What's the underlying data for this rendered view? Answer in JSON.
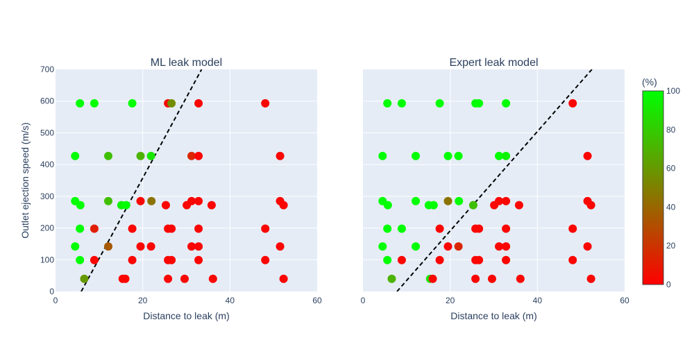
{
  "chart_data": [
    {
      "type": "scatter",
      "title": "ML leak model",
      "xlabel": "Distance to leak (m)",
      "ylabel": "Outlet ejection speed (m/s)",
      "xlim": [
        0,
        60
      ],
      "ylim": [
        0,
        700
      ],
      "xticks": [
        "0",
        "20",
        "40",
        "60"
      ],
      "yticks": [
        "0",
        "100",
        "200",
        "300",
        "400",
        "500",
        "600",
        "700"
      ],
      "grid": true,
      "boundary_line": {
        "x": [
          5.9,
          33.5
        ],
        "y": [
          0,
          700
        ],
        "style": "dashed"
      },
      "points": [
        {
          "x": 5.6,
          "y": 593,
          "value": 100
        },
        {
          "x": 8.9,
          "y": 593,
          "value": 100
        },
        {
          "x": 17.6,
          "y": 593,
          "value": 100
        },
        {
          "x": 25.8,
          "y": 593,
          "value": 3
        },
        {
          "x": 26.6,
          "y": 593,
          "value": 55
        },
        {
          "x": 32.8,
          "y": 593,
          "value": 2
        },
        {
          "x": 48.1,
          "y": 593,
          "value": 2
        },
        {
          "x": 4.5,
          "y": 427,
          "value": 100
        },
        {
          "x": 12.1,
          "y": 427,
          "value": 75
        },
        {
          "x": 19.5,
          "y": 427,
          "value": 70
        },
        {
          "x": 21.9,
          "y": 427,
          "value": 90
        },
        {
          "x": 31.2,
          "y": 427,
          "value": 15
        },
        {
          "x": 32.8,
          "y": 427,
          "value": 2
        },
        {
          "x": 51.5,
          "y": 427,
          "value": 2
        },
        {
          "x": 4.5,
          "y": 285,
          "value": 100
        },
        {
          "x": 5.7,
          "y": 272,
          "value": 100
        },
        {
          "x": 12.1,
          "y": 285,
          "value": 75
        },
        {
          "x": 15.1,
          "y": 272,
          "value": 95
        },
        {
          "x": 16.2,
          "y": 272,
          "value": 100
        },
        {
          "x": 19.5,
          "y": 285,
          "value": 3
        },
        {
          "x": 22.0,
          "y": 285,
          "value": 45
        },
        {
          "x": 25.3,
          "y": 272,
          "value": 2
        },
        {
          "x": 30.1,
          "y": 272,
          "value": 2
        },
        {
          "x": 31.2,
          "y": 285,
          "value": 2
        },
        {
          "x": 32.8,
          "y": 285,
          "value": 2
        },
        {
          "x": 35.8,
          "y": 272,
          "value": 2
        },
        {
          "x": 51.5,
          "y": 285,
          "value": 2
        },
        {
          "x": 52.3,
          "y": 272,
          "value": 2
        },
        {
          "x": 5.6,
          "y": 198,
          "value": 100
        },
        {
          "x": 8.9,
          "y": 198,
          "value": 12
        },
        {
          "x": 17.6,
          "y": 198,
          "value": 2
        },
        {
          "x": 25.8,
          "y": 198,
          "value": 2
        },
        {
          "x": 26.6,
          "y": 198,
          "value": 2
        },
        {
          "x": 32.8,
          "y": 198,
          "value": 2
        },
        {
          "x": 48.1,
          "y": 198,
          "value": 2
        },
        {
          "x": 4.5,
          "y": 142,
          "value": 100
        },
        {
          "x": 12.1,
          "y": 142,
          "value": 35
        },
        {
          "x": 19.5,
          "y": 142,
          "value": 2
        },
        {
          "x": 21.9,
          "y": 142,
          "value": 2
        },
        {
          "x": 31.2,
          "y": 142,
          "value": 2
        },
        {
          "x": 32.8,
          "y": 142,
          "value": 2
        },
        {
          "x": 51.5,
          "y": 142,
          "value": 2
        },
        {
          "x": 5.6,
          "y": 99,
          "value": 100
        },
        {
          "x": 8.9,
          "y": 99,
          "value": 2
        },
        {
          "x": 17.6,
          "y": 99,
          "value": 2
        },
        {
          "x": 25.8,
          "y": 99,
          "value": 2
        },
        {
          "x": 26.6,
          "y": 99,
          "value": 2
        },
        {
          "x": 32.8,
          "y": 99,
          "value": 2
        },
        {
          "x": 48.1,
          "y": 99,
          "value": 2
        },
        {
          "x": 6.6,
          "y": 40,
          "value": 60
        },
        {
          "x": 15.4,
          "y": 40,
          "value": 2
        },
        {
          "x": 16.0,
          "y": 40,
          "value": 2
        },
        {
          "x": 25.8,
          "y": 40,
          "value": 2
        },
        {
          "x": 29.6,
          "y": 40,
          "value": 2
        },
        {
          "x": 36.1,
          "y": 40,
          "value": 2
        },
        {
          "x": 52.3,
          "y": 40,
          "value": 2
        }
      ]
    },
    {
      "type": "scatter",
      "title": "Expert leak model",
      "xlabel": "Distance to leak (m)",
      "xlim": [
        0,
        60
      ],
      "ylim": [
        0,
        700
      ],
      "xticks": [
        "0",
        "20",
        "40",
        "60"
      ],
      "grid": true,
      "boundary_line": {
        "x": [
          7.8,
          52.5
        ],
        "y": [
          0,
          700
        ],
        "style": "dashed"
      },
      "points": [
        {
          "x": 5.6,
          "y": 593,
          "value": 100
        },
        {
          "x": 8.9,
          "y": 593,
          "value": 100
        },
        {
          "x": 17.6,
          "y": 593,
          "value": 100
        },
        {
          "x": 25.8,
          "y": 593,
          "value": 100
        },
        {
          "x": 26.6,
          "y": 593,
          "value": 100
        },
        {
          "x": 32.8,
          "y": 593,
          "value": 100
        },
        {
          "x": 48.1,
          "y": 593,
          "value": 2
        },
        {
          "x": 4.5,
          "y": 427,
          "value": 100
        },
        {
          "x": 12.1,
          "y": 427,
          "value": 100
        },
        {
          "x": 19.5,
          "y": 427,
          "value": 100
        },
        {
          "x": 21.9,
          "y": 427,
          "value": 100
        },
        {
          "x": 31.2,
          "y": 427,
          "value": 100
        },
        {
          "x": 32.8,
          "y": 427,
          "value": 95
        },
        {
          "x": 51.5,
          "y": 427,
          "value": 2
        },
        {
          "x": 4.5,
          "y": 285,
          "value": 100
        },
        {
          "x": 5.7,
          "y": 272,
          "value": 100
        },
        {
          "x": 12.1,
          "y": 285,
          "value": 100
        },
        {
          "x": 15.1,
          "y": 272,
          "value": 100
        },
        {
          "x": 16.2,
          "y": 272,
          "value": 100
        },
        {
          "x": 19.5,
          "y": 285,
          "value": 45
        },
        {
          "x": 22.0,
          "y": 285,
          "value": 100
        },
        {
          "x": 25.3,
          "y": 272,
          "value": 75
        },
        {
          "x": 30.1,
          "y": 272,
          "value": 2
        },
        {
          "x": 31.2,
          "y": 285,
          "value": 2
        },
        {
          "x": 32.8,
          "y": 285,
          "value": 2
        },
        {
          "x": 35.8,
          "y": 272,
          "value": 2
        },
        {
          "x": 51.5,
          "y": 285,
          "value": 2
        },
        {
          "x": 52.3,
          "y": 272,
          "value": 2
        },
        {
          "x": 5.6,
          "y": 198,
          "value": 100
        },
        {
          "x": 8.9,
          "y": 198,
          "value": 100
        },
        {
          "x": 17.6,
          "y": 198,
          "value": 2
        },
        {
          "x": 25.8,
          "y": 198,
          "value": 2
        },
        {
          "x": 26.6,
          "y": 198,
          "value": 2
        },
        {
          "x": 32.8,
          "y": 198,
          "value": 2
        },
        {
          "x": 48.1,
          "y": 198,
          "value": 2
        },
        {
          "x": 4.5,
          "y": 142,
          "value": 100
        },
        {
          "x": 12.1,
          "y": 142,
          "value": 100
        },
        {
          "x": 19.5,
          "y": 142,
          "value": 2
        },
        {
          "x": 21.9,
          "y": 142,
          "value": 15
        },
        {
          "x": 31.2,
          "y": 142,
          "value": 2
        },
        {
          "x": 32.8,
          "y": 142,
          "value": 2
        },
        {
          "x": 51.5,
          "y": 142,
          "value": 2
        },
        {
          "x": 5.6,
          "y": 99,
          "value": 100
        },
        {
          "x": 8.9,
          "y": 99,
          "value": 2
        },
        {
          "x": 17.6,
          "y": 99,
          "value": 2
        },
        {
          "x": 25.8,
          "y": 99,
          "value": 2
        },
        {
          "x": 26.6,
          "y": 99,
          "value": 2
        },
        {
          "x": 32.8,
          "y": 99,
          "value": 2
        },
        {
          "x": 48.1,
          "y": 99,
          "value": 2
        },
        {
          "x": 6.6,
          "y": 40,
          "value": 70
        },
        {
          "x": 15.4,
          "y": 40,
          "value": 90
        },
        {
          "x": 16.0,
          "y": 40,
          "value": 2
        },
        {
          "x": 25.8,
          "y": 40,
          "value": 2
        },
        {
          "x": 29.6,
          "y": 40,
          "value": 2
        },
        {
          "x": 36.1,
          "y": 40,
          "value": 2
        },
        {
          "x": 52.3,
          "y": 40,
          "value": 2
        }
      ]
    }
  ],
  "colorbar": {
    "title": "(%)",
    "range": [
      0,
      100
    ],
    "ticks": [
      "0",
      "20",
      "40",
      "60",
      "80",
      "100"
    ],
    "color_low": "#ff0000",
    "color_high": "#00ff00"
  },
  "colors": {
    "plot_bg": "#e5ecf6",
    "grid": "#ffffff",
    "text": "#2a3f5f",
    "line": "#000000"
  }
}
